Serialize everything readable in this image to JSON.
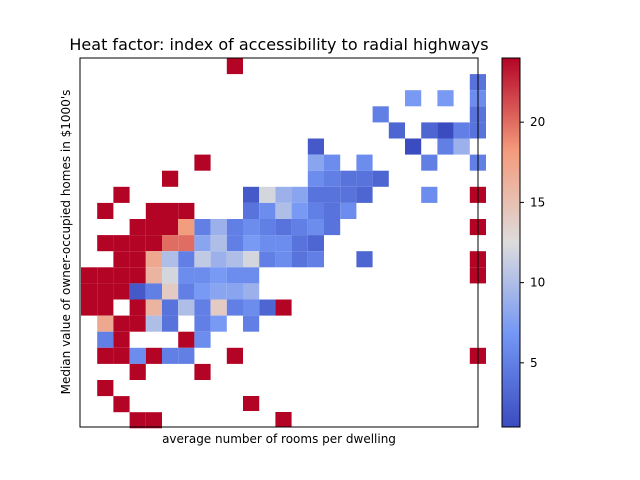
{
  "chart_data": {
    "type": "heatmap",
    "title": "Heat factor: index of accessibility to radial highways",
    "xlabel": "average number of rooms per dwelling",
    "ylabel": "Median value of owner-occupied homes in $1000's",
    "x_ticks_shown": false,
    "y_ticks_shown": false,
    "grid": false,
    "colormap": "coolwarm",
    "colorbar": {
      "vmin": 1,
      "vmax": 24,
      "ticks": [
        5,
        10,
        15,
        20
      ],
      "tick_labels": [
        "5",
        "10",
        "15",
        "20"
      ]
    },
    "n_cols": 25,
    "n_rows": 23,
    "cells": [
      [
        9,
        0,
        24
      ],
      [
        24,
        1,
        4
      ],
      [
        20,
        2,
        7
      ],
      [
        22,
        2,
        7
      ],
      [
        24,
        2,
        6
      ],
      [
        18,
        3,
        5
      ],
      [
        24,
        3,
        4
      ],
      [
        19,
        4,
        3
      ],
      [
        21,
        4,
        3
      ],
      [
        22,
        4,
        1
      ],
      [
        23,
        4,
        5
      ],
      [
        24,
        4,
        4
      ],
      [
        14,
        5,
        2
      ],
      [
        20,
        5,
        1
      ],
      [
        22,
        5,
        5
      ],
      [
        23,
        5,
        9
      ],
      [
        7,
        6,
        24
      ],
      [
        14,
        6,
        8
      ],
      [
        15,
        6,
        6
      ],
      [
        17,
        6,
        6
      ],
      [
        21,
        6,
        5
      ],
      [
        24,
        6,
        5
      ],
      [
        5,
        7,
        24
      ],
      [
        14,
        7,
        6
      ],
      [
        15,
        7,
        5
      ],
      [
        16,
        7,
        4
      ],
      [
        17,
        7,
        4
      ],
      [
        18,
        7,
        3
      ],
      [
        2,
        8,
        24
      ],
      [
        10,
        8,
        2
      ],
      [
        11,
        8,
        12
      ],
      [
        12,
        8,
        9
      ],
      [
        13,
        8,
        8
      ],
      [
        14,
        8,
        4
      ],
      [
        15,
        8,
        4
      ],
      [
        16,
        8,
        4
      ],
      [
        17,
        8,
        3
      ],
      [
        21,
        8,
        6
      ],
      [
        24,
        8,
        24
      ],
      [
        1,
        9,
        24
      ],
      [
        4,
        9,
        24
      ],
      [
        5,
        9,
        24
      ],
      [
        6,
        9,
        24
      ],
      [
        10,
        9,
        4
      ],
      [
        11,
        9,
        6
      ],
      [
        12,
        9,
        10
      ],
      [
        13,
        9,
        7
      ],
      [
        14,
        9,
        5
      ],
      [
        15,
        9,
        4
      ],
      [
        16,
        9,
        6
      ],
      [
        3,
        10,
        24
      ],
      [
        4,
        10,
        24
      ],
      [
        5,
        10,
        24
      ],
      [
        6,
        10,
        18
      ],
      [
        7,
        10,
        5
      ],
      [
        8,
        10,
        9
      ],
      [
        9,
        10,
        5
      ],
      [
        10,
        10,
        6
      ],
      [
        11,
        10,
        5
      ],
      [
        12,
        10,
        4
      ],
      [
        13,
        10,
        5
      ],
      [
        14,
        10,
        6
      ],
      [
        15,
        10,
        4
      ],
      [
        24,
        10,
        24
      ],
      [
        1,
        11,
        24
      ],
      [
        2,
        11,
        24
      ],
      [
        3,
        11,
        24
      ],
      [
        4,
        11,
        24
      ],
      [
        5,
        11,
        20
      ],
      [
        6,
        11,
        20
      ],
      [
        7,
        11,
        8
      ],
      [
        8,
        11,
        10
      ],
      [
        9,
        11,
        5
      ],
      [
        10,
        11,
        7
      ],
      [
        11,
        11,
        6
      ],
      [
        12,
        11,
        6
      ],
      [
        13,
        11,
        4
      ],
      [
        14,
        11,
        3
      ],
      [
        2,
        12,
        24
      ],
      [
        3,
        12,
        24
      ],
      [
        4,
        12,
        17
      ],
      [
        5,
        12,
        10
      ],
      [
        6,
        12,
        5
      ],
      [
        7,
        12,
        11
      ],
      [
        8,
        12,
        9
      ],
      [
        9,
        12,
        10
      ],
      [
        10,
        12,
        12
      ],
      [
        11,
        12,
        5
      ],
      [
        12,
        12,
        6
      ],
      [
        13,
        12,
        4
      ],
      [
        14,
        12,
        5
      ],
      [
        17,
        12,
        3
      ],
      [
        24,
        12,
        24
      ],
      [
        0,
        13,
        24
      ],
      [
        1,
        13,
        24
      ],
      [
        2,
        13,
        24
      ],
      [
        3,
        13,
        24
      ],
      [
        4,
        13,
        16
      ],
      [
        5,
        13,
        12
      ],
      [
        6,
        13,
        6
      ],
      [
        7,
        13,
        6
      ],
      [
        8,
        13,
        7
      ],
      [
        9,
        13,
        6
      ],
      [
        10,
        13,
        6
      ],
      [
        24,
        13,
        24
      ],
      [
        0,
        14,
        24
      ],
      [
        1,
        14,
        24
      ],
      [
        2,
        14,
        24
      ],
      [
        3,
        14,
        2
      ],
      [
        4,
        14,
        5
      ],
      [
        5,
        14,
        14
      ],
      [
        6,
        14,
        5
      ],
      [
        7,
        14,
        7
      ],
      [
        8,
        14,
        8
      ],
      [
        9,
        14,
        8
      ],
      [
        10,
        14,
        9
      ],
      [
        0,
        15,
        24
      ],
      [
        1,
        15,
        24
      ],
      [
        3,
        15,
        24
      ],
      [
        4,
        15,
        16
      ],
      [
        5,
        15,
        4
      ],
      [
        6,
        15,
        10
      ],
      [
        7,
        15,
        5
      ],
      [
        8,
        15,
        14
      ],
      [
        9,
        15,
        5
      ],
      [
        10,
        15,
        6
      ],
      [
        11,
        15,
        3
      ],
      [
        12,
        15,
        24
      ],
      [
        1,
        16,
        17
      ],
      [
        2,
        16,
        24
      ],
      [
        3,
        16,
        24
      ],
      [
        4,
        16,
        10
      ],
      [
        5,
        16,
        4
      ],
      [
        7,
        16,
        5
      ],
      [
        8,
        16,
        7
      ],
      [
        10,
        16,
        5
      ],
      [
        1,
        17,
        5
      ],
      [
        2,
        17,
        24
      ],
      [
        6,
        17,
        24
      ],
      [
        7,
        17,
        6
      ],
      [
        1,
        18,
        24
      ],
      [
        2,
        18,
        24
      ],
      [
        3,
        18,
        6
      ],
      [
        4,
        18,
        24
      ],
      [
        5,
        18,
        5
      ],
      [
        6,
        18,
        5
      ],
      [
        9,
        18,
        24
      ],
      [
        24,
        18,
        24
      ],
      [
        3,
        19,
        24
      ],
      [
        7,
        19,
        24
      ],
      [
        1,
        20,
        24
      ],
      [
        2,
        21,
        24
      ],
      [
        3,
        22,
        24
      ],
      [
        4,
        22,
        24
      ]
    ],
    "extra_cells": [
      [
        10,
        23,
        24
      ],
      [
        12,
        24,
        24
      ]
    ]
  }
}
